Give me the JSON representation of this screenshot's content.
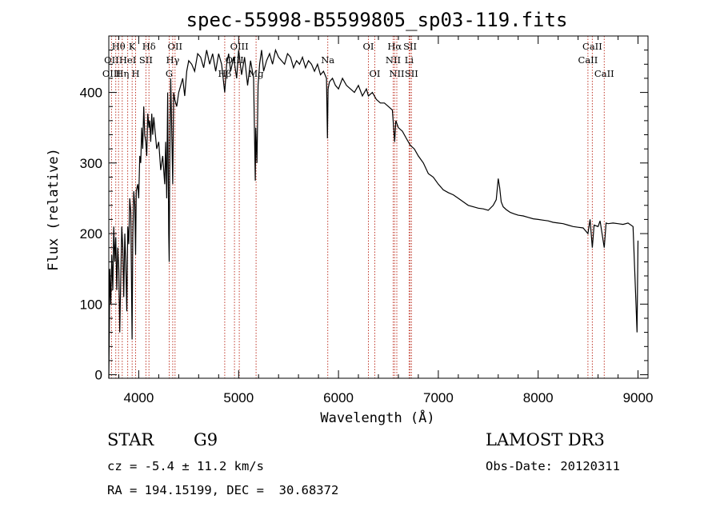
{
  "chart_data": {
    "type": "line",
    "title": "spec-55998-B5599805_sp03-119.fits",
    "xlabel": "Wavelength (Å)",
    "ylabel": "Flux (relative)",
    "xlim": [
      3700,
      9100
    ],
    "ylim": [
      -5,
      480
    ],
    "xticks": [
      4000,
      5000,
      6000,
      7000,
      8000,
      9000
    ],
    "yticks": [
      0,
      100,
      200,
      300,
      400
    ],
    "spectrum": {
      "x": [
        3700,
        3705,
        3710,
        3720,
        3730,
        3740,
        3750,
        3760,
        3770,
        3780,
        3790,
        3800,
        3810,
        3820,
        3830,
        3840,
        3850,
        3860,
        3870,
        3880,
        3890,
        3900,
        3910,
        3920,
        3933,
        3940,
        3950,
        3960,
        3968,
        3975,
        3990,
        4000,
        4010,
        4020,
        4030,
        4040,
        4050,
        4060,
        4070,
        4080,
        4090,
        4102,
        4110,
        4120,
        4130,
        4140,
        4150,
        4160,
        4180,
        4200,
        4220,
        4240,
        4260,
        4270,
        4280,
        4290,
        4300,
        4305,
        4310,
        4320,
        4330,
        4340,
        4350,
        4360,
        4380,
        4400,
        4420,
        4440,
        4460,
        4480,
        4500,
        4530,
        4560,
        4590,
        4620,
        4650,
        4680,
        4710,
        4740,
        4770,
        4800,
        4830,
        4861,
        4880,
        4900,
        4920,
        4950,
        4980,
        5000,
        5030,
        5060,
        5090,
        5120,
        5150,
        5167,
        5172,
        5184,
        5195,
        5210,
        5230,
        5250,
        5280,
        5310,
        5340,
        5370,
        5400,
        5430,
        5460,
        5490,
        5520,
        5550,
        5580,
        5610,
        5640,
        5670,
        5700,
        5730,
        5760,
        5790,
        5820,
        5850,
        5880,
        5890,
        5896,
        5910,
        5940,
        5970,
        6000,
        6040,
        6080,
        6120,
        6160,
        6200,
        6240,
        6280,
        6300,
        6340,
        6380,
        6420,
        6460,
        6500,
        6540,
        6563,
        6575,
        6600,
        6640,
        6680,
        6720,
        6760,
        6800,
        6850,
        6900,
        6950,
        7000,
        7050,
        7100,
        7150,
        7200,
        7250,
        7300,
        7350,
        7400,
        7450,
        7500,
        7550,
        7580,
        7600,
        7615,
        7630,
        7650,
        7680,
        7720,
        7760,
        7800,
        7850,
        7900,
        7950,
        8000,
        8050,
        8100,
        8150,
        8200,
        8250,
        8300,
        8350,
        8400,
        8450,
        8498,
        8520,
        8542,
        8560,
        8600,
        8620,
        8662,
        8680,
        8700,
        8750,
        8800,
        8850,
        8900,
        8950,
        8980,
        8990,
        9000
      ],
      "y": [
        -5,
        60,
        150,
        100,
        170,
        120,
        210,
        160,
        195,
        120,
        180,
        150,
        60,
        140,
        210,
        180,
        110,
        200,
        160,
        90,
        210,
        185,
        250,
        230,
        50,
        195,
        260,
        240,
        170,
        260,
        270,
        250,
        310,
        300,
        350,
        320,
        380,
        340,
        330,
        310,
        370,
        350,
        360,
        330,
        370,
        340,
        365,
        350,
        320,
        330,
        290,
        310,
        270,
        330,
        250,
        400,
        200,
        160,
        290,
        420,
        350,
        270,
        400,
        390,
        380,
        400,
        410,
        420,
        395,
        430,
        445,
        440,
        430,
        455,
        450,
        435,
        460,
        440,
        455,
        430,
        455,
        440,
        400,
        440,
        455,
        430,
        450,
        420,
        460,
        425,
        450,
        410,
        445,
        420,
        275,
        350,
        300,
        410,
        440,
        460,
        430,
        445,
        455,
        440,
        460,
        450,
        445,
        440,
        455,
        450,
        435,
        445,
        440,
        450,
        435,
        445,
        440,
        430,
        440,
        425,
        430,
        420,
        335,
        405,
        415,
        420,
        410,
        405,
        420,
        410,
        405,
        400,
        410,
        395,
        405,
        395,
        400,
        390,
        385,
        385,
        380,
        375,
        330,
        360,
        350,
        345,
        335,
        325,
        320,
        310,
        300,
        285,
        280,
        270,
        262,
        258,
        255,
        250,
        245,
        240,
        238,
        236,
        235,
        233,
        240,
        248,
        278,
        265,
        245,
        238,
        234,
        230,
        228,
        226,
        225,
        223,
        221,
        220,
        219,
        218,
        216,
        215,
        214,
        212,
        210,
        209,
        208,
        200,
        220,
        180,
        212,
        210,
        218,
        180,
        215,
        214,
        215,
        214,
        213,
        215,
        210,
        100,
        60,
        190
      ]
    },
    "lines": [
      {
        "label": "Hθ",
        "row": 1,
        "wl": 3798
      },
      {
        "label": "K",
        "row": 1,
        "wl": 3934
      },
      {
        "label": "Hδ",
        "row": 1,
        "wl": 4102
      },
      {
        "label": "OII",
        "row": 1,
        "wl": 4363
      },
      {
        "label": "OIII",
        "row": 1,
        "wl": 5007
      },
      {
        "label": "OI",
        "row": 1,
        "wl": 6300
      },
      {
        "label": "Hα",
        "row": 1,
        "wl": 6563
      },
      {
        "label": "SII",
        "row": 1,
        "wl": 6717
      },
      {
        "label": "CaII",
        "row": 1,
        "wl": 8542
      },
      {
        "label": "OII",
        "row": 2,
        "wl": 3727
      },
      {
        "label": "HeI",
        "row": 2,
        "wl": 3889
      },
      {
        "label": "SII",
        "row": 2,
        "wl": 4072
      },
      {
        "label": "Hγ",
        "row": 2,
        "wl": 4340
      },
      {
        "label": "OIII",
        "row": 2,
        "wl": 4959
      },
      {
        "label": "Na",
        "row": 2,
        "wl": 5893
      },
      {
        "label": "NII",
        "row": 2,
        "wl": 6548
      },
      {
        "label": "Li",
        "row": 2,
        "wl": 6708
      },
      {
        "label": "CaII",
        "row": 2,
        "wl": 8498
      },
      {
        "label": "OIII",
        "row": 3,
        "wl": 3727
      },
      {
        "label": "Hη",
        "row": 3,
        "wl": 3835
      },
      {
        "label": "H",
        "row": 3,
        "wl": 3968
      },
      {
        "label": "G",
        "row": 3,
        "wl": 4305
      },
      {
        "label": "Hβ",
        "row": 3,
        "wl": 4861
      },
      {
        "label": "Mg",
        "row": 3,
        "wl": 5175
      },
      {
        "label": "OI",
        "row": 3,
        "wl": 6364
      },
      {
        "label": "NII",
        "row": 3,
        "wl": 6584
      },
      {
        "label": "SII",
        "row": 3,
        "wl": 6731
      },
      {
        "label": "CaII",
        "row": 3,
        "wl": 8662
      }
    ],
    "marker_lines": [
      3727,
      3770,
      3798,
      3835,
      3889,
      3934,
      3968,
      4072,
      4102,
      4305,
      4340,
      4363,
      4861,
      4959,
      5007,
      5175,
      5893,
      6300,
      6364,
      6548,
      6563,
      6584,
      6708,
      6717,
      6731,
      8498,
      8542,
      8662
    ]
  },
  "info": {
    "class": "STAR",
    "subclass": "G9",
    "survey": "LAMOST DR3",
    "cz": "cz = -5.4 ± 11.2 km/s",
    "obs_date": "Obs-Date: 20120311",
    "radec": "RA = 194.15199, DEC =  30.68372"
  },
  "colors": {
    "marker": "#c0392b",
    "spectrum": "#000000"
  }
}
